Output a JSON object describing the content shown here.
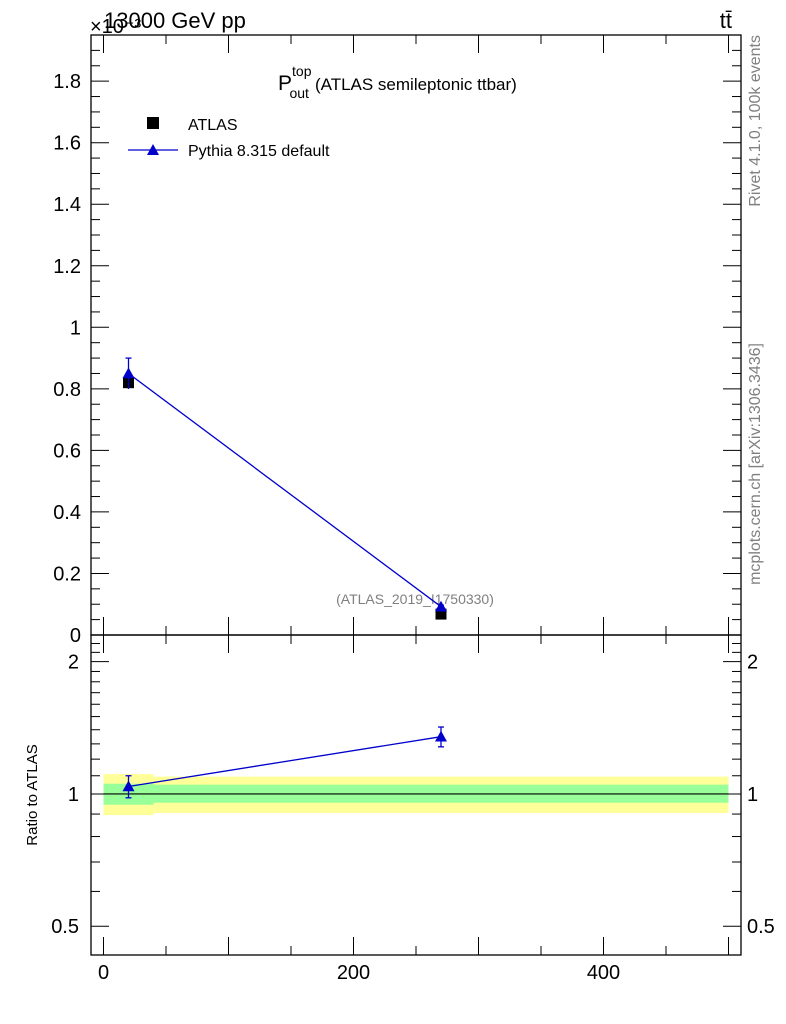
{
  "header": {
    "energy_label": "13000 GeV pp",
    "process_label": "tt̄",
    "exponent_label": "×10⁻³"
  },
  "side_labels": {
    "rivet": "Rivet 4.1.0,  100k events",
    "source": "mcplots.cern.ch [arXiv:1306.3436]"
  },
  "colors": {
    "mc": "#0000cc",
    "data": "#000000",
    "band_inner": "#99ff99",
    "band_outer": "#ffff99"
  },
  "chart_data": [
    {
      "type": "scatter",
      "title_main": "P",
      "title_sup": "top",
      "title_sub": "out",
      "title_rest": "(ATLAS semileptonic ttbar)",
      "analysis_label": "(ATLAS_2019_I1750330)",
      "ylim": [
        0,
        1.95
      ],
      "y_scale_note": "×10⁻³",
      "yticks": [
        {
          "v": 0,
          "label": "0"
        },
        {
          "v": 0.2,
          "label": "0.2"
        },
        {
          "v": 0.4,
          "label": "0.4"
        },
        {
          "v": 0.6,
          "label": "0.6"
        },
        {
          "v": 0.8,
          "label": "0.8"
        },
        {
          "v": 1.0,
          "label": "1"
        },
        {
          "v": 1.2,
          "label": "1.2"
        },
        {
          "v": 1.4,
          "label": "1.4"
        },
        {
          "v": 1.6,
          "label": "1.6"
        },
        {
          "v": 1.8,
          "label": "1.8"
        }
      ],
      "xlim": [
        -10,
        510
      ],
      "legend": [
        {
          "label": "ATLAS",
          "marker": "square"
        },
        {
          "label": "Pythia 8.315 default",
          "marker": "triangle"
        }
      ],
      "series": [
        {
          "name": "ATLAS",
          "points": [
            {
              "x": 20,
              "y": 0.82,
              "err": 0.02
            },
            {
              "x": 270,
              "y": 0.068,
              "err": 0.003
            }
          ]
        },
        {
          "name": "Pythia 8.315 default",
          "points": [
            {
              "x": 20,
              "y": 0.85,
              "err": 0.05
            },
            {
              "x": 270,
              "y": 0.092,
              "err": 0.005
            }
          ]
        }
      ]
    },
    {
      "type": "scatter",
      "ylabel": "Ratio to ATLAS",
      "y_scale": "log",
      "ylim": [
        0.43,
        2.3
      ],
      "yticks": [
        {
          "v": 0.5,
          "label": "0.5"
        },
        {
          "v": 1,
          "label": "1"
        },
        {
          "v": 2,
          "label": "2"
        }
      ],
      "xlim": [
        -10,
        510
      ],
      "xticks": [
        {
          "v": 0,
          "label": "0"
        },
        {
          "v": 200,
          "label": "200"
        },
        {
          "v": 400,
          "label": "400"
        }
      ],
      "bands": [
        {
          "x0": 0,
          "x1": 40,
          "inner": [
            0.945,
            1.055
          ],
          "outer": [
            0.895,
            1.11
          ]
        },
        {
          "x0": 40,
          "x1": 500,
          "inner": [
            0.955,
            1.05
          ],
          "outer": [
            0.905,
            1.095
          ]
        }
      ],
      "series": [
        {
          "name": "Pythia 8.315 default",
          "points": [
            {
              "x": 20,
              "y": 1.04,
              "err": 0.06
            },
            {
              "x": 270,
              "y": 1.35,
              "err": 0.07
            }
          ]
        }
      ]
    }
  ]
}
